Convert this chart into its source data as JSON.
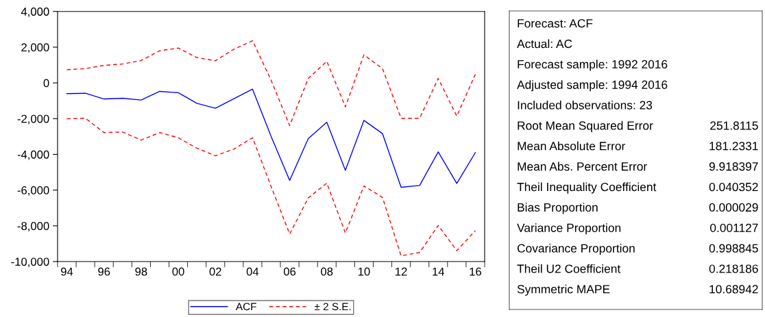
{
  "chart_data": [
    {
      "type": "line",
      "x": [
        1994,
        1995,
        1996,
        1997,
        1998,
        1999,
        2000,
        2001,
        2002,
        2003,
        2004,
        2005,
        2006,
        2007,
        2008,
        2009,
        2010,
        2011,
        2012,
        2013,
        2014,
        2015,
        2016
      ],
      "series": [
        {
          "name": "ACF",
          "color": "#0000ff",
          "line_style": "solid",
          "values": [
            -600,
            -580,
            -900,
            -860,
            -960,
            -475,
            -550,
            -1140,
            -1420,
            -880,
            -350,
            -3000,
            -5460,
            -3120,
            -2200,
            -4890,
            -2100,
            -2840,
            -5840,
            -5740,
            -3860,
            -5630,
            -3900
          ]
        },
        {
          "name": "± 2 S.E.",
          "color": "#ff0000",
          "line_style": "dashed",
          "values": [
            740,
            800,
            980,
            1060,
            1250,
            1800,
            1950,
            1420,
            1240,
            1890,
            2360,
            150,
            -2390,
            250,
            1210,
            -1340,
            1570,
            800,
            -1980,
            -1980,
            250,
            -1860,
            480
          ]
        },
        {
          "color": "#ff0000",
          "line_style": "dashed",
          "values": [
            -2010,
            -1980,
            -2780,
            -2750,
            -3200,
            -2780,
            -3070,
            -3650,
            -4080,
            -3700,
            -3070,
            -5800,
            -8460,
            -6440,
            -5610,
            -8400,
            -5770,
            -6410,
            -9680,
            -9490,
            -7980,
            -9390,
            -8270
          ]
        }
      ],
      "xlim": [
        1993.5,
        2016.5
      ],
      "xticks": [
        {
          "value": 1994,
          "label": "94"
        },
        {
          "value": 1996,
          "label": "96"
        },
        {
          "value": 1998,
          "label": "98"
        },
        {
          "value": 2000,
          "label": "00"
        },
        {
          "value": 2002,
          "label": "02"
        },
        {
          "value": 2004,
          "label": "04"
        },
        {
          "value": 2006,
          "label": "06"
        },
        {
          "value": 2008,
          "label": "08"
        },
        {
          "value": 2010,
          "label": "10"
        },
        {
          "value": 2012,
          "label": "12"
        },
        {
          "value": 2014,
          "label": "14"
        },
        {
          "value": 2016,
          "label": "16"
        }
      ],
      "ylim": [
        -10000,
        4000
      ],
      "yticks": [
        {
          "value": -10000,
          "label": "-10,000"
        },
        {
          "value": -8000,
          "label": "-8,000"
        },
        {
          "value": -6000,
          "label": "-6,000"
        },
        {
          "value": -4000,
          "label": "-4,000"
        },
        {
          "value": -2000,
          "label": "-2,000"
        },
        {
          "value": 0,
          "label": "0"
        },
        {
          "value": 2000,
          "label": "2,000"
        },
        {
          "value": 4000,
          "label": "4,000"
        }
      ],
      "grid": false,
      "legend": "bottom"
    },
    {
      "type": "other",
      "categories": [
        "Forecast: ACF",
        "Actual: AC",
        "Forecast sample: 1992 2016",
        "Adjusted sample: 1994 2016",
        "Included observations: 23",
        "Root Mean Squared Error",
        "Mean Absolute Error",
        "Mean Abs. Percent Error",
        "Theil Inequality Coefficient",
        "Bias Proportion",
        "Variance Proportion",
        "Covariance Proportion",
        "Theil U2 Coefficient",
        "Symmetric MAPE"
      ],
      "value_labels": [
        null,
        null,
        null,
        null,
        null,
        "251.8115",
        "181.2331",
        "9.918397",
        "0.040352",
        "0.000029",
        "0.001127",
        "0.998845",
        "0.218186",
        "10.68942"
      ]
    }
  ]
}
